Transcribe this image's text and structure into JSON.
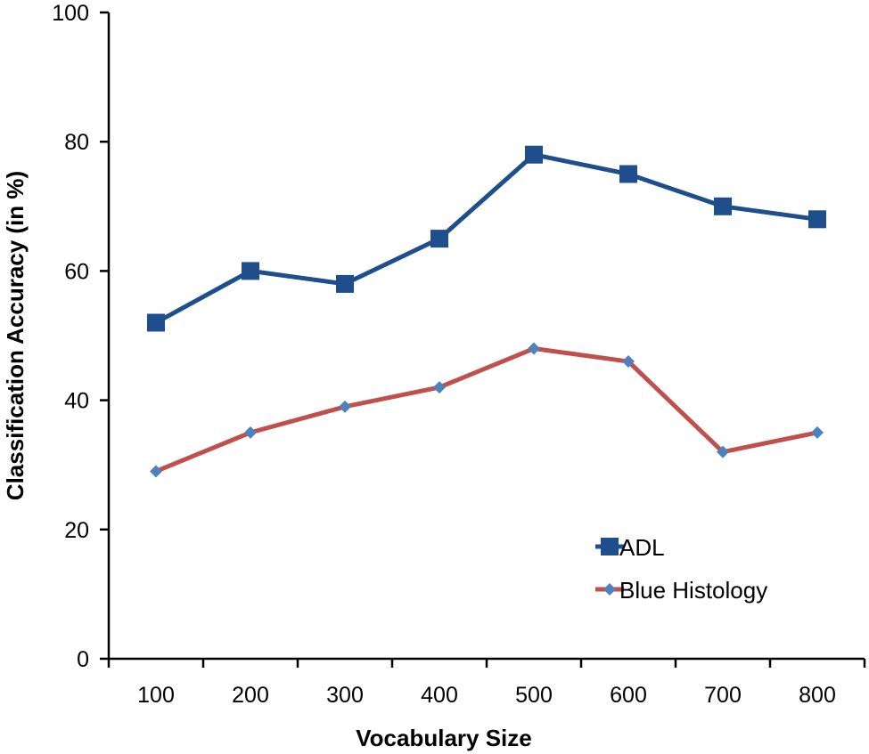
{
  "chart_data": {
    "type": "line",
    "title": "",
    "xlabel": "Vocabulary Size",
    "ylabel": "Classification Accuracy (in %)",
    "categories": [
      "100",
      "200",
      "300",
      "400",
      "500",
      "600",
      "700",
      "800"
    ],
    "ylim": [
      0,
      100
    ],
    "yticks": [
      "0",
      "20",
      "40",
      "60",
      "80",
      "100"
    ],
    "grid": false,
    "legend_position": "bottom-right",
    "series": [
      {
        "name": "ADL",
        "values": [
          52,
          60,
          58,
          65,
          78,
          75,
          70,
          68
        ],
        "line_color": "#1F4E8C",
        "marker": "square",
        "marker_color": "#1F4E8C"
      },
      {
        "name": "Blue Histology",
        "values": [
          29,
          35,
          39,
          42,
          48,
          46,
          32,
          35
        ],
        "line_color": "#C0504D",
        "marker": "diamond",
        "marker_color": "#4F81BD"
      }
    ]
  }
}
